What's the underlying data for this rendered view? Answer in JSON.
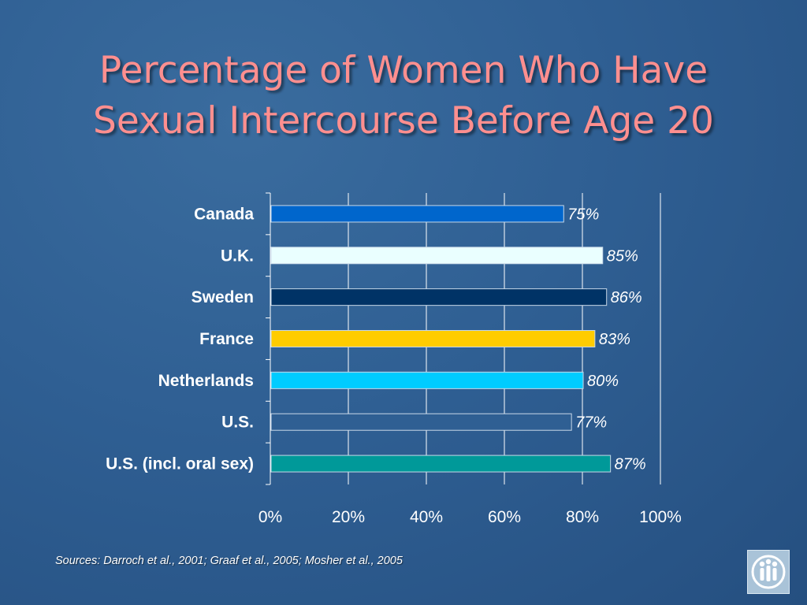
{
  "title": {
    "line1": "Percentage of Women Who Have",
    "line2": "Sexual Intercourse Before Age 20"
  },
  "sources": "Sources: Darroch et al., 2001; Graaf et al., 2005; Mosher et al., 2005",
  "logo_icon": "people-logo-icon",
  "chart_data": {
    "type": "bar",
    "orientation": "horizontal",
    "categories": [
      "Canada",
      "U.K.",
      "Sweden",
      "France",
      "Netherlands",
      "U.S.",
      "U.S. (incl. oral sex)"
    ],
    "values": [
      75,
      85,
      86,
      83,
      80,
      77,
      87
    ],
    "value_labels": [
      "75%",
      "85%",
      "86%",
      "83%",
      "80%",
      "77%",
      "87%"
    ],
    "colors": [
      "#0066cc",
      "#eaffff",
      "#003366",
      "#ffcc00",
      "#00ccff",
      "#2f5f93",
      "#009999"
    ],
    "xlim": [
      0,
      100
    ],
    "x_ticks": [
      0,
      20,
      40,
      60,
      80,
      100
    ],
    "x_tick_labels": [
      "0%",
      "20%",
      "40%",
      "60%",
      "80%",
      "100%"
    ],
    "grid": true,
    "legend": "none"
  }
}
